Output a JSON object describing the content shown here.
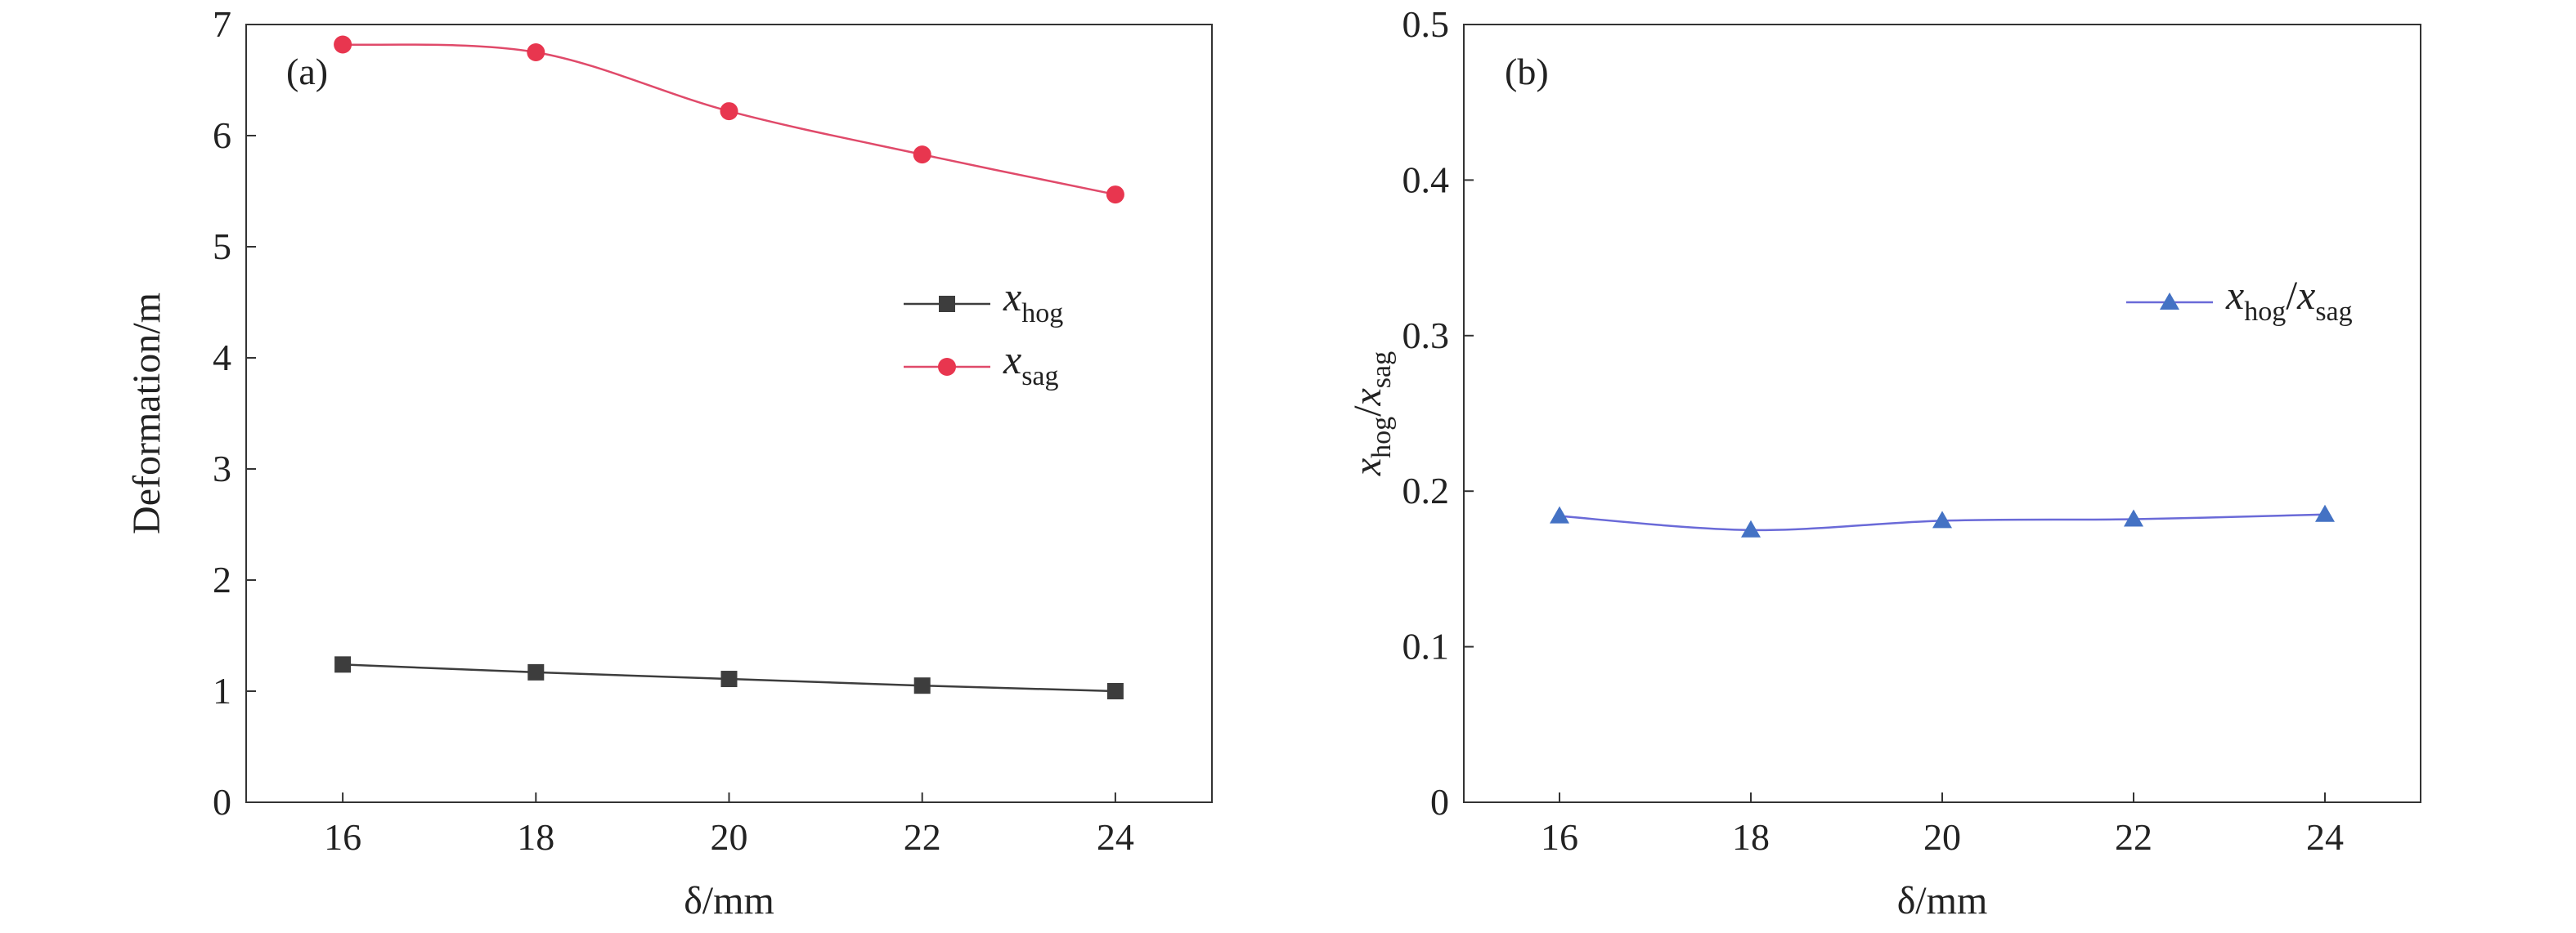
{
  "chart_data": [
    {
      "type": "line",
      "panel_label": "(a)",
      "x": [
        16,
        18,
        20,
        22,
        24
      ],
      "xlabel": "δ/mm",
      "ylabel": "Deformation/m",
      "xlim": [
        15,
        25
      ],
      "ylim": [
        0,
        7
      ],
      "xticks": [
        "16",
        "18",
        "20",
        "22",
        "24"
      ],
      "yticks": [
        "0",
        "1",
        "2",
        "3",
        "4",
        "5",
        "6",
        "7"
      ],
      "legend_position": "center-right",
      "grid": false,
      "series": [
        {
          "name": "x_hog",
          "legend_main": "x",
          "legend_sub": "hog",
          "marker": "square",
          "color": "#3d3d3d",
          "values": [
            1.24,
            1.17,
            1.11,
            1.05,
            1.0
          ]
        },
        {
          "name": "x_sag",
          "legend_main": "x",
          "legend_sub": "sag",
          "marker": "circle",
          "color": "#e8364f",
          "line_color": "#e04a6a",
          "values": [
            6.82,
            6.75,
            6.22,
            5.83,
            5.47
          ]
        }
      ]
    },
    {
      "type": "line",
      "panel_label": "(b)",
      "x": [
        16,
        18,
        20,
        22,
        24
      ],
      "xlabel": "δ/mm",
      "ylabel": "x_hog/x_sag",
      "xlim": [
        15,
        25
      ],
      "ylim": [
        0,
        0.5
      ],
      "xticks": [
        "16",
        "18",
        "20",
        "22",
        "24"
      ],
      "yticks": [
        "0",
        "0.1",
        "0.2",
        "0.3",
        "0.4",
        "0.5"
      ],
      "legend_position": "upper-right",
      "grid": false,
      "series": [
        {
          "name": "x_hog/x_sag",
          "legend_main": "x",
          "legend_sub": "hog",
          "legend_main2": "x",
          "legend_sub2": "sag",
          "marker": "triangle",
          "color": "#4472c4",
          "line_color": "#6a6ad8",
          "values": [
            0.184,
            0.175,
            0.181,
            0.182,
            0.185
          ]
        }
      ]
    }
  ]
}
